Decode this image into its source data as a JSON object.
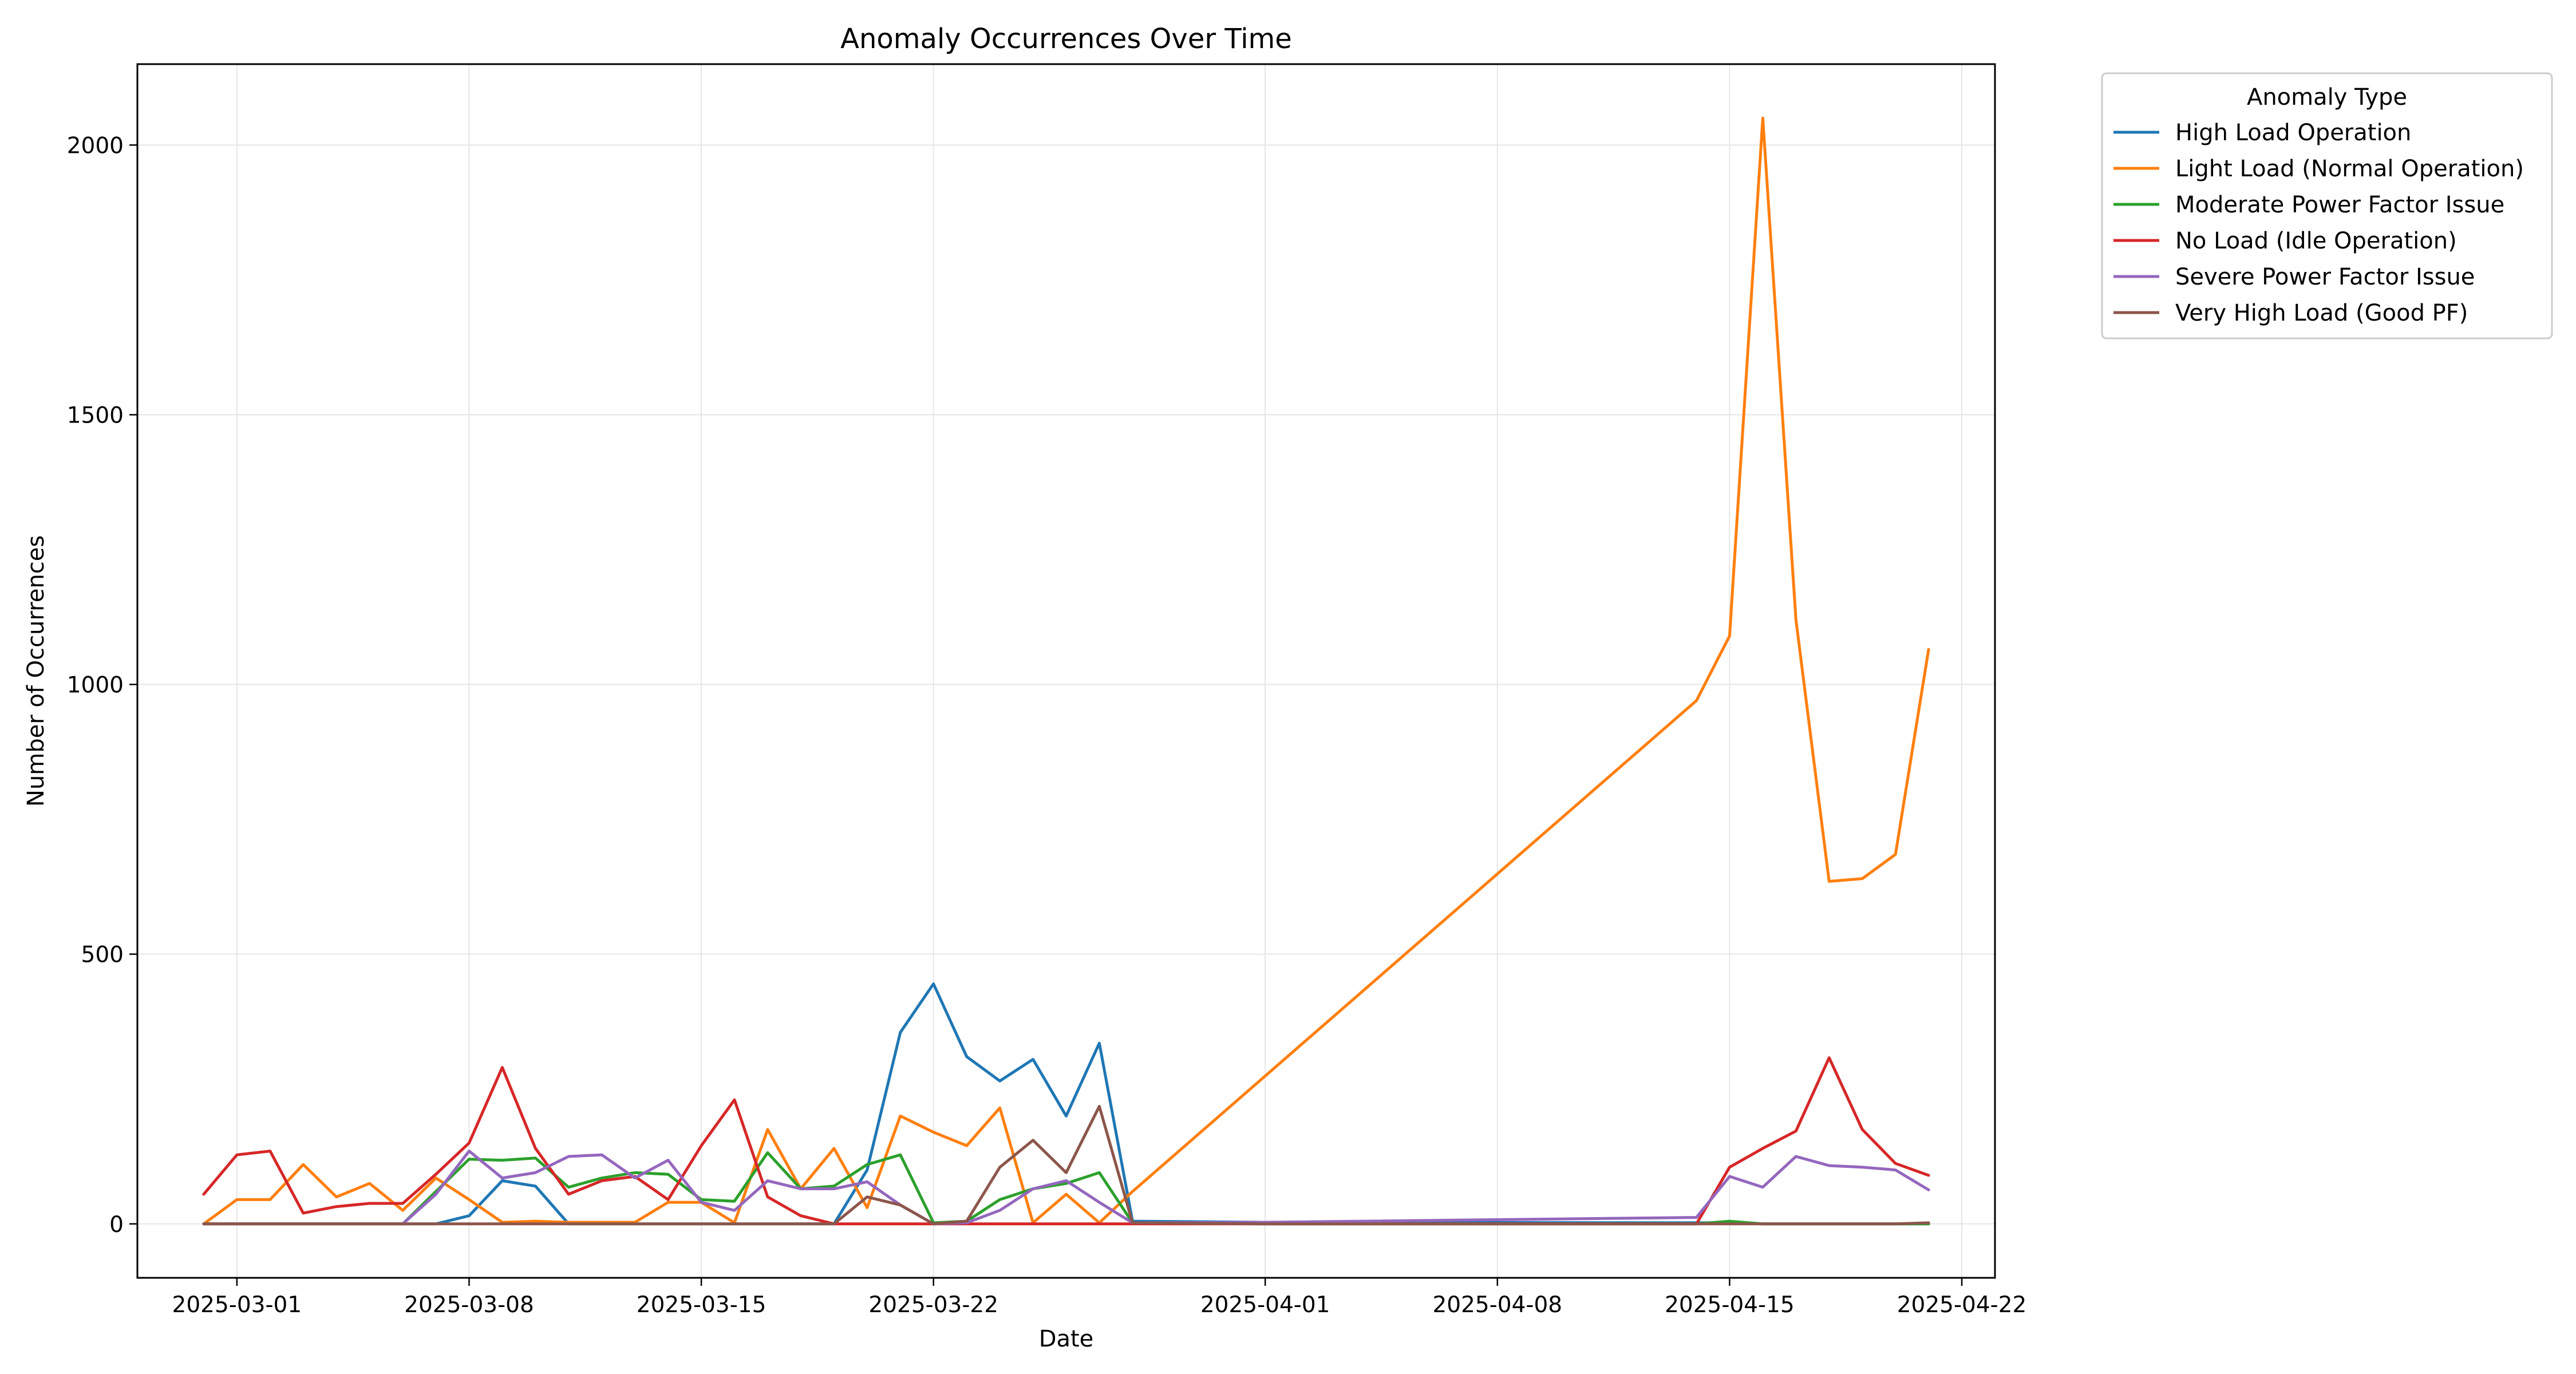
{
  "chart_data": {
    "type": "line",
    "title": "Anomaly Occurrences Over Time",
    "xlabel": "Date",
    "ylabel": "Number of Occurrences",
    "xlim": [
      "2025-02-26",
      "2025-04-23"
    ],
    "ylim": [
      -100,
      2150
    ],
    "x_ticks": [
      "2025-03-01",
      "2025-03-08",
      "2025-03-15",
      "2025-03-22",
      "2025-04-01",
      "2025-04-08",
      "2025-04-15",
      "2025-04-22"
    ],
    "y_ticks": [
      0,
      500,
      1000,
      1500,
      2000
    ],
    "grid": true,
    "legend": {
      "title": "Anomaly Type",
      "placement": "outside top-right"
    },
    "series": [
      {
        "name": "High Load Operation",
        "color": "#1f77b4",
        "points": [
          [
            "2025-02-28",
            0
          ],
          [
            "2025-03-01",
            0
          ],
          [
            "2025-03-02",
            0
          ],
          [
            "2025-03-03",
            0
          ],
          [
            "2025-03-04",
            0
          ],
          [
            "2025-03-05",
            0
          ],
          [
            "2025-03-06",
            0
          ],
          [
            "2025-03-07",
            0
          ],
          [
            "2025-03-08",
            15
          ],
          [
            "2025-03-09",
            80
          ],
          [
            "2025-03-10",
            70
          ],
          [
            "2025-03-11",
            0
          ],
          [
            "2025-03-12",
            0
          ],
          [
            "2025-03-13",
            0
          ],
          [
            "2025-03-14",
            0
          ],
          [
            "2025-03-15",
            0
          ],
          [
            "2025-03-16",
            0
          ],
          [
            "2025-03-17",
            0
          ],
          [
            "2025-03-18",
            0
          ],
          [
            "2025-03-19",
            0
          ],
          [
            "2025-03-20",
            100
          ],
          [
            "2025-03-21",
            355
          ],
          [
            "2025-03-22",
            445
          ],
          [
            "2025-03-23",
            310
          ],
          [
            "2025-03-24",
            265
          ],
          [
            "2025-03-25",
            305
          ],
          [
            "2025-03-26",
            200
          ],
          [
            "2025-03-27",
            335
          ],
          [
            "2025-03-28",
            5
          ],
          [
            "2025-04-01",
            3
          ],
          [
            "2025-04-14",
            2
          ],
          [
            "2025-04-15",
            2
          ],
          [
            "2025-04-16",
            0
          ],
          [
            "2025-04-17",
            0
          ],
          [
            "2025-04-18",
            0
          ],
          [
            "2025-04-19",
            0
          ],
          [
            "2025-04-20",
            0
          ],
          [
            "2025-04-21",
            0
          ]
        ]
      },
      {
        "name": "Light Load (Normal Operation)",
        "color": "#ff7f0e",
        "points": [
          [
            "2025-02-28",
            0
          ],
          [
            "2025-03-01",
            45
          ],
          [
            "2025-03-02",
            45
          ],
          [
            "2025-03-03",
            110
          ],
          [
            "2025-03-04",
            50
          ],
          [
            "2025-03-05",
            75
          ],
          [
            "2025-03-06",
            25
          ],
          [
            "2025-03-07",
            85
          ],
          [
            "2025-03-08",
            45
          ],
          [
            "2025-03-09",
            3
          ],
          [
            "2025-03-10",
            5
          ],
          [
            "2025-03-11",
            3
          ],
          [
            "2025-03-12",
            3
          ],
          [
            "2025-03-13",
            3
          ],
          [
            "2025-03-14",
            40
          ],
          [
            "2025-03-15",
            40
          ],
          [
            "2025-03-16",
            2
          ],
          [
            "2025-03-17",
            175
          ],
          [
            "2025-03-18",
            65
          ],
          [
            "2025-03-19",
            140
          ],
          [
            "2025-03-20",
            30
          ],
          [
            "2025-03-21",
            200
          ],
          [
            "2025-03-22",
            170
          ],
          [
            "2025-03-23",
            145
          ],
          [
            "2025-03-24",
            215
          ],
          [
            "2025-03-25",
            2
          ],
          [
            "2025-03-26",
            55
          ],
          [
            "2025-03-27",
            2
          ],
          [
            "2025-03-28",
            60
          ],
          [
            "2025-04-14",
            970
          ],
          [
            "2025-04-15",
            1090
          ],
          [
            "2025-04-16",
            2050
          ],
          [
            "2025-04-17",
            1120
          ],
          [
            "2025-04-18",
            635
          ],
          [
            "2025-04-19",
            640
          ],
          [
            "2025-04-20",
            685
          ],
          [
            "2025-04-21",
            1065
          ]
        ]
      },
      {
        "name": "Moderate Power Factor Issue",
        "color": "#2ca02c",
        "points": [
          [
            "2025-02-28",
            0
          ],
          [
            "2025-03-01",
            0
          ],
          [
            "2025-03-02",
            0
          ],
          [
            "2025-03-03",
            0
          ],
          [
            "2025-03-04",
            0
          ],
          [
            "2025-03-05",
            0
          ],
          [
            "2025-03-06",
            0
          ],
          [
            "2025-03-07",
            60
          ],
          [
            "2025-03-08",
            120
          ],
          [
            "2025-03-09",
            118
          ],
          [
            "2025-03-10",
            122
          ],
          [
            "2025-03-11",
            68
          ],
          [
            "2025-03-12",
            85
          ],
          [
            "2025-03-13",
            95
          ],
          [
            "2025-03-14",
            92
          ],
          [
            "2025-03-15",
            45
          ],
          [
            "2025-03-16",
            42
          ],
          [
            "2025-03-17",
            132
          ],
          [
            "2025-03-18",
            65
          ],
          [
            "2025-03-19",
            70
          ],
          [
            "2025-03-20",
            110
          ],
          [
            "2025-03-21",
            128
          ],
          [
            "2025-03-22",
            2
          ],
          [
            "2025-03-23",
            5
          ],
          [
            "2025-03-24",
            45
          ],
          [
            "2025-03-25",
            65
          ],
          [
            "2025-03-26",
            75
          ],
          [
            "2025-03-27",
            95
          ],
          [
            "2025-03-28",
            2
          ],
          [
            "2025-04-01",
            0
          ],
          [
            "2025-04-14",
            0
          ],
          [
            "2025-04-15",
            5
          ],
          [
            "2025-04-16",
            0
          ],
          [
            "2025-04-17",
            0
          ],
          [
            "2025-04-18",
            0
          ],
          [
            "2025-04-19",
            0
          ],
          [
            "2025-04-20",
            0
          ],
          [
            "2025-04-21",
            0
          ]
        ]
      },
      {
        "name": "No Load (Idle Operation)",
        "color": "#d62728",
        "points": [
          [
            "2025-02-28",
            55
          ],
          [
            "2025-03-01",
            128
          ],
          [
            "2025-03-02",
            135
          ],
          [
            "2025-03-03",
            20
          ],
          [
            "2025-03-04",
            32
          ],
          [
            "2025-03-05",
            38
          ],
          [
            "2025-03-06",
            38
          ],
          [
            "2025-03-07",
            92
          ],
          [
            "2025-03-08",
            150
          ],
          [
            "2025-03-09",
            290
          ],
          [
            "2025-03-10",
            140
          ],
          [
            "2025-03-11",
            55
          ],
          [
            "2025-03-12",
            80
          ],
          [
            "2025-03-13",
            88
          ],
          [
            "2025-03-14",
            45
          ],
          [
            "2025-03-15",
            145
          ],
          [
            "2025-03-16",
            230
          ],
          [
            "2025-03-17",
            50
          ],
          [
            "2025-03-18",
            15
          ],
          [
            "2025-03-19",
            0
          ],
          [
            "2025-03-20",
            0
          ],
          [
            "2025-03-21",
            0
          ],
          [
            "2025-03-22",
            0
          ],
          [
            "2025-03-23",
            0
          ],
          [
            "2025-03-24",
            0
          ],
          [
            "2025-03-25",
            0
          ],
          [
            "2025-03-26",
            0
          ],
          [
            "2025-03-27",
            0
          ],
          [
            "2025-03-28",
            0
          ],
          [
            "2025-04-01",
            0
          ],
          [
            "2025-04-14",
            0
          ],
          [
            "2025-04-15",
            105
          ],
          [
            "2025-04-16",
            140
          ],
          [
            "2025-04-17",
            172
          ],
          [
            "2025-04-18",
            308
          ],
          [
            "2025-04-19",
            175
          ],
          [
            "2025-04-20",
            112
          ],
          [
            "2025-04-21",
            90
          ]
        ]
      },
      {
        "name": "Severe Power Factor Issue",
        "color": "#9467bd",
        "points": [
          [
            "2025-02-28",
            0
          ],
          [
            "2025-03-01",
            0
          ],
          [
            "2025-03-02",
            0
          ],
          [
            "2025-03-03",
            0
          ],
          [
            "2025-03-04",
            0
          ],
          [
            "2025-03-05",
            0
          ],
          [
            "2025-03-06",
            0
          ],
          [
            "2025-03-07",
            55
          ],
          [
            "2025-03-08",
            135
          ],
          [
            "2025-03-09",
            85
          ],
          [
            "2025-03-10",
            95
          ],
          [
            "2025-03-11",
            125
          ],
          [
            "2025-03-12",
            128
          ],
          [
            "2025-03-13",
            85
          ],
          [
            "2025-03-14",
            118
          ],
          [
            "2025-03-15",
            40
          ],
          [
            "2025-03-16",
            25
          ],
          [
            "2025-03-17",
            80
          ],
          [
            "2025-03-18",
            65
          ],
          [
            "2025-03-19",
            65
          ],
          [
            "2025-03-20",
            78
          ],
          [
            "2025-03-21",
            35
          ],
          [
            "2025-03-22",
            0
          ],
          [
            "2025-03-23",
            2
          ],
          [
            "2025-03-24",
            25
          ],
          [
            "2025-03-25",
            65
          ],
          [
            "2025-03-26",
            80
          ],
          [
            "2025-03-27",
            40
          ],
          [
            "2025-03-28",
            2
          ],
          [
            "2025-04-01",
            3
          ],
          [
            "2025-04-14",
            12
          ],
          [
            "2025-04-15",
            88
          ],
          [
            "2025-04-16",
            68
          ],
          [
            "2025-04-17",
            125
          ],
          [
            "2025-04-18",
            108
          ],
          [
            "2025-04-19",
            105
          ],
          [
            "2025-04-20",
            100
          ],
          [
            "2025-04-21",
            63
          ]
        ]
      },
      {
        "name": "Very High Load (Good PF)",
        "color": "#8c564b",
        "points": [
          [
            "2025-02-28",
            0
          ],
          [
            "2025-03-01",
            0
          ],
          [
            "2025-03-02",
            0
          ],
          [
            "2025-03-03",
            0
          ],
          [
            "2025-03-04",
            0
          ],
          [
            "2025-03-05",
            0
          ],
          [
            "2025-03-06",
            0
          ],
          [
            "2025-03-07",
            0
          ],
          [
            "2025-03-08",
            0
          ],
          [
            "2025-03-09",
            0
          ],
          [
            "2025-03-10",
            0
          ],
          [
            "2025-03-11",
            0
          ],
          [
            "2025-03-12",
            0
          ],
          [
            "2025-03-13",
            0
          ],
          [
            "2025-03-14",
            0
          ],
          [
            "2025-03-15",
            0
          ],
          [
            "2025-03-16",
            0
          ],
          [
            "2025-03-17",
            0
          ],
          [
            "2025-03-18",
            0
          ],
          [
            "2025-03-19",
            0
          ],
          [
            "2025-03-20",
            50
          ],
          [
            "2025-03-21",
            35
          ],
          [
            "2025-03-22",
            0
          ],
          [
            "2025-03-23",
            5
          ],
          [
            "2025-03-24",
            105
          ],
          [
            "2025-03-25",
            155
          ],
          [
            "2025-03-26",
            95
          ],
          [
            "2025-03-27",
            218
          ],
          [
            "2025-03-28",
            2
          ],
          [
            "2025-04-01",
            0
          ],
          [
            "2025-04-14",
            0
          ],
          [
            "2025-04-15",
            0
          ],
          [
            "2025-04-16",
            0
          ],
          [
            "2025-04-17",
            0
          ],
          [
            "2025-04-18",
            0
          ],
          [
            "2025-04-19",
            0
          ],
          [
            "2025-04-20",
            0
          ],
          [
            "2025-04-21",
            2
          ]
        ]
      }
    ]
  }
}
